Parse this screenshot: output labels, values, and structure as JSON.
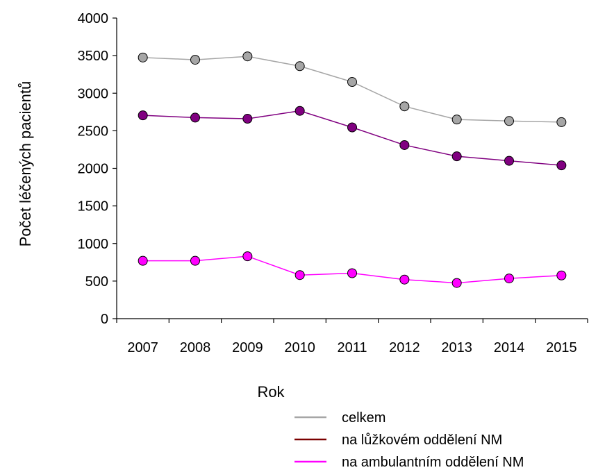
{
  "chart_data": {
    "type": "line",
    "xlabel": "Rok",
    "ylabel": "Počet léčených pacientů",
    "categories": [
      "2007",
      "2008",
      "2009",
      "2010",
      "2011",
      "2012",
      "2013",
      "2014",
      "2015"
    ],
    "ylim": [
      0,
      4000
    ],
    "yticks": [
      "0",
      "500",
      "1000",
      "1500",
      "2000",
      "2500",
      "3000",
      "3500",
      "4000"
    ],
    "grid": false,
    "legend_position": "bottom-right",
    "series": [
      {
        "name": "celkem",
        "line_color": "#a6a6a6",
        "marker_color": "#a6a6a6",
        "values": [
          3475,
          3445,
          3490,
          3360,
          3150,
          2825,
          2650,
          2630,
          2615
        ]
      },
      {
        "name": "na lůžkovém oddělení NM",
        "line_color": "#800080",
        "marker_color": "#800080",
        "legend_color": "#7b0000",
        "values": [
          2705,
          2675,
          2660,
          2765,
          2545,
          2310,
          2160,
          2100,
          2040
        ]
      },
      {
        "name": "na ambulantním oddělení NM",
        "line_color": "#ff00ff",
        "marker_color": "#ff00ff",
        "values": [
          770,
          770,
          830,
          580,
          605,
          520,
          475,
          535,
          575
        ]
      }
    ]
  }
}
